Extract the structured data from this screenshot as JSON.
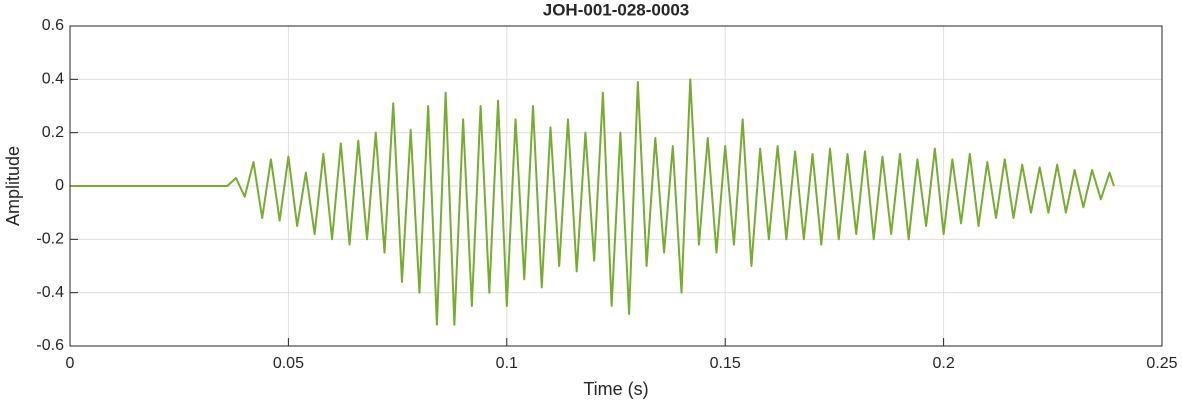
{
  "chart_data": {
    "type": "line",
    "title": "JOH-001-028-0003",
    "xlabel": "Time (s)",
    "ylabel": "Amplitude",
    "x": [
      0,
      0.03,
      0.036,
      0.038,
      0.04,
      0.042,
      0.044,
      0.046,
      0.048,
      0.05,
      0.052,
      0.054,
      0.056,
      0.058,
      0.06,
      0.062,
      0.064,
      0.066,
      0.068,
      0.07,
      0.072,
      0.074,
      0.076,
      0.078,
      0.08,
      0.082,
      0.084,
      0.086,
      0.088,
      0.09,
      0.092,
      0.094,
      0.096,
      0.098,
      0.1,
      0.102,
      0.104,
      0.106,
      0.108,
      0.11,
      0.112,
      0.114,
      0.116,
      0.118,
      0.12,
      0.122,
      0.124,
      0.126,
      0.128,
      0.13,
      0.132,
      0.134,
      0.136,
      0.138,
      0.14,
      0.142,
      0.144,
      0.146,
      0.148,
      0.15,
      0.152,
      0.154,
      0.156,
      0.158,
      0.16,
      0.162,
      0.164,
      0.166,
      0.168,
      0.17,
      0.172,
      0.174,
      0.176,
      0.178,
      0.18,
      0.182,
      0.184,
      0.186,
      0.188,
      0.19,
      0.192,
      0.194,
      0.196,
      0.198,
      0.2,
      0.202,
      0.204,
      0.206,
      0.208,
      0.21,
      0.212,
      0.214,
      0.216,
      0.218,
      0.22,
      0.222,
      0.224,
      0.226,
      0.228,
      0.23,
      0.232,
      0.234,
      0.236,
      0.238,
      0.239
    ],
    "series": [
      {
        "name": "Amplitude",
        "color": "#77ac30",
        "values": [
          0,
          0,
          0,
          0.03,
          -0.04,
          0.09,
          -0.12,
          0.1,
          -0.13,
          0.11,
          -0.15,
          0.05,
          -0.18,
          0.12,
          -0.2,
          0.16,
          -0.22,
          0.17,
          -0.2,
          0.2,
          -0.25,
          0.31,
          -0.36,
          0.21,
          -0.4,
          0.3,
          -0.52,
          0.35,
          -0.52,
          0.25,
          -0.45,
          0.3,
          -0.4,
          0.32,
          -0.45,
          0.25,
          -0.35,
          0.3,
          -0.38,
          0.22,
          -0.3,
          0.25,
          -0.32,
          0.2,
          -0.28,
          0.35,
          -0.45,
          0.2,
          -0.48,
          0.39,
          -0.3,
          0.18,
          -0.25,
          0.15,
          -0.4,
          0.4,
          -0.22,
          0.18,
          -0.25,
          0.15,
          -0.22,
          0.25,
          -0.3,
          0.14,
          -0.2,
          0.15,
          -0.2,
          0.13,
          -0.2,
          0.12,
          -0.22,
          0.14,
          -0.2,
          0.12,
          -0.18,
          0.13,
          -0.2,
          0.11,
          -0.18,
          0.12,
          -0.2,
          0.1,
          -0.15,
          0.14,
          -0.18,
          0.1,
          -0.14,
          0.12,
          -0.15,
          0.09,
          -0.12,
          0.1,
          -0.12,
          0.08,
          -0.1,
          0.07,
          -0.1,
          0.08,
          -0.1,
          0.06,
          -0.08,
          0.06,
          -0.05,
          0.05,
          0
        ]
      }
    ],
    "xlim": [
      0,
      0.25
    ],
    "xticks": [
      0,
      0.05,
      0.1,
      0.15,
      0.2,
      0.25
    ],
    "ylim": [
      -0.6,
      0.6
    ],
    "yticks": [
      -0.6,
      -0.4,
      -0.2,
      0,
      0.2,
      0.4,
      0.6
    ],
    "grid": true
  }
}
